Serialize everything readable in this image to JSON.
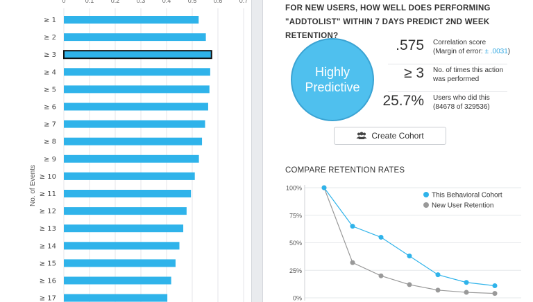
{
  "left_chart": {
    "chart_data": {
      "type": "bar",
      "orientation": "horizontal",
      "ylabel": "No. of Events",
      "xlim": [
        0,
        0.7
      ],
      "x_ticks": [
        "0",
        "0.1",
        "0.2",
        "0.3",
        "0.4",
        "0.5",
        "0.6",
        "0.7"
      ],
      "grid": true,
      "categories": [
        "≥ 1",
        "≥ 2",
        "≥ 3",
        "≥ 4",
        "≥ 5",
        "≥ 6",
        "≥ 7",
        "≥ 8",
        "≥ 9",
        "≥ 10",
        "≥ 11",
        "≥ 12",
        "≥ 13",
        "≥ 14",
        "≥ 15",
        "≥ 16",
        "≥ 17"
      ],
      "values": [
        0.525,
        0.553,
        0.575,
        0.57,
        0.567,
        0.562,
        0.55,
        0.538,
        0.526,
        0.51,
        0.495,
        0.478,
        0.465,
        0.45,
        0.435,
        0.418,
        0.403
      ],
      "selected_category": "≥ 3",
      "bar_color": "#2fb3ea"
    }
  },
  "question": {
    "prefix": "FOR NEW USERS, HOW WELL DOES PERFORMING",
    "event_quoted": "\"ADDTOLIST\"",
    "within": "WITHIN",
    "window": "7 DAYS",
    "predict": "PREDICT",
    "target": "2ND WEEK",
    "suffix": "RETENTION?"
  },
  "prediction": {
    "line1": "Highly",
    "line2": "Predictive",
    "color": "#4fc0ee"
  },
  "stats": [
    {
      "value": ".575",
      "label": "Correlation score",
      "label2_prefix": "(Margin of error: ",
      "label2_link": "± .0031",
      "label2_suffix": ")"
    },
    {
      "value": "≥ 3",
      "label": "No. of times this action",
      "label2_prefix": "was performed",
      "label2_link": "",
      "label2_suffix": ""
    },
    {
      "value": "25.7%",
      "label": "Users who did this",
      "label2_prefix": "(84678 of 329536)",
      "label2_link": "",
      "label2_suffix": ""
    }
  ],
  "create_cohort": {
    "label": "Create Cohort",
    "icon": "users-icon"
  },
  "compare": {
    "title": "COMPARE RETENTION RATES",
    "chart_data": {
      "type": "line",
      "y_ticks": [
        "100%",
        "75%",
        "50%",
        "25%",
        "0%"
      ],
      "ylim": [
        0,
        100
      ],
      "x": [
        0,
        1,
        2,
        3,
        4,
        5,
        6
      ],
      "legend_placement": "top-right",
      "series": [
        {
          "name": "This Behavioral Cohort",
          "color": "#2fb3ea",
          "values": [
            100,
            65,
            55,
            38,
            21,
            14,
            11
          ]
        },
        {
          "name": "New User Retention",
          "color": "#999999",
          "values": [
            100,
            32,
            20,
            12,
            7,
            5,
            4
          ]
        }
      ]
    }
  }
}
